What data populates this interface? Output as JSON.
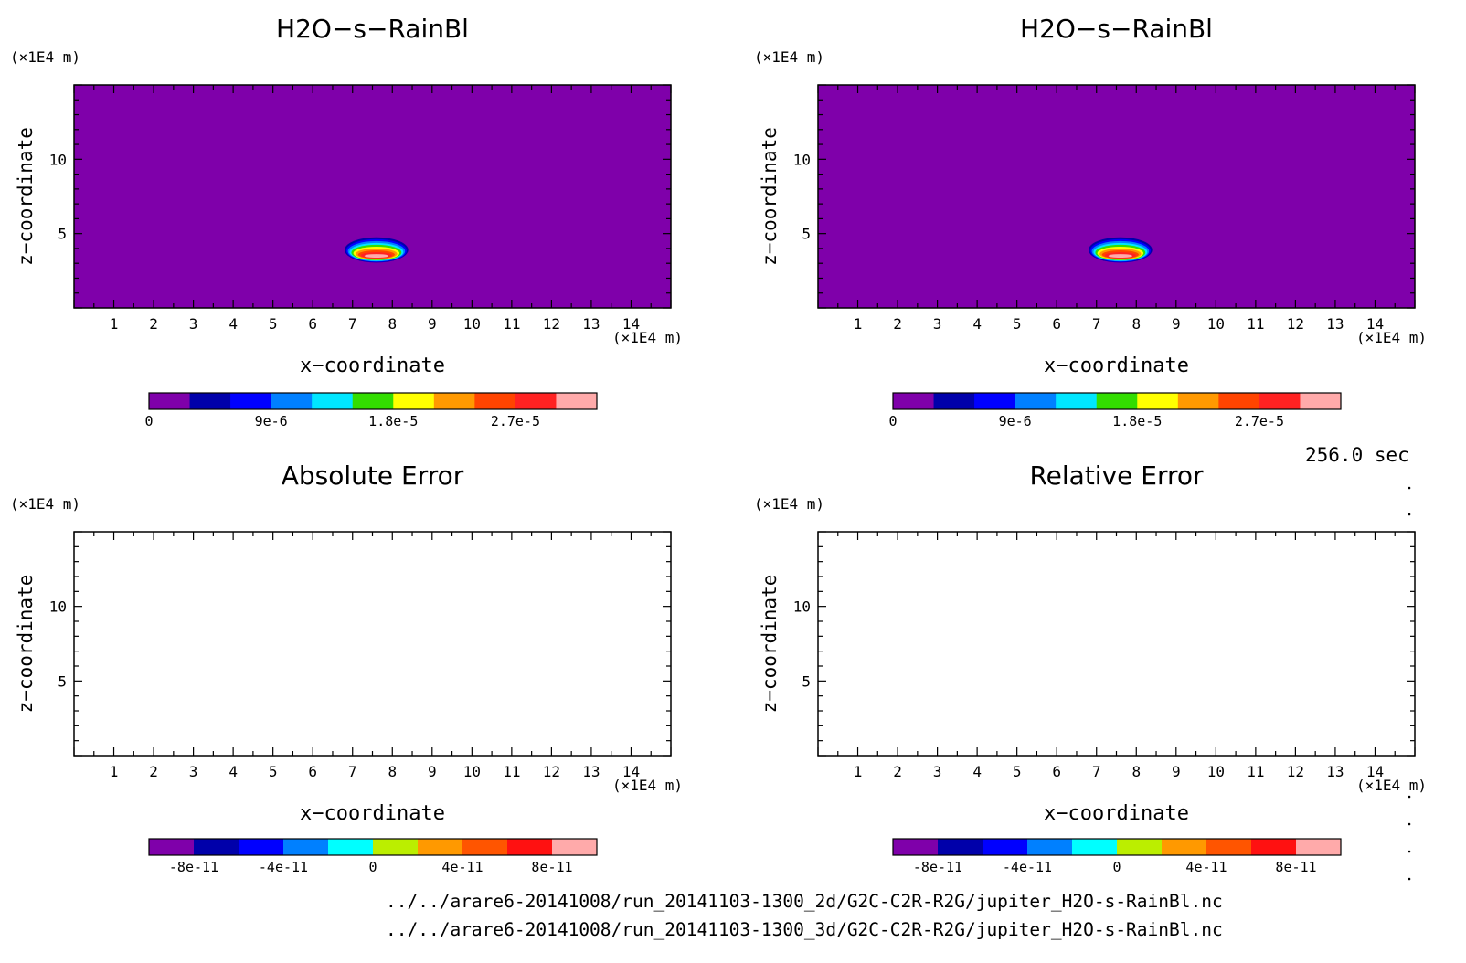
{
  "chart_data": [
    {
      "type": "heatmap",
      "title": "H2O−s−RainBl",
      "xlabel": "x−coordinate",
      "ylabel": "z−coordinate",
      "x_unit": "(×1E4 m)",
      "y_unit": "(×1E4 m)",
      "xlim": [
        0,
        15
      ],
      "ylim": [
        0,
        15
      ],
      "x_ticks": [
        "1",
        "2",
        "3",
        "4",
        "5",
        "6",
        "7",
        "8",
        "9",
        "10",
        "11",
        "12",
        "13",
        "14"
      ],
      "y_ticks": [
        "5",
        "10"
      ],
      "background_value": 0,
      "field_feature": {
        "shape": "blob",
        "center_x": 7.6,
        "center_z": 3.9,
        "width_x": 1.6,
        "height_z": 1.7,
        "peak_value": 3.2e-05
      },
      "colorbar": {
        "colors": [
          "#7f00aa",
          "#0000aa",
          "#0000ff",
          "#0080ff",
          "#00e6ff",
          "#33dd00",
          "#ffff00",
          "#ff9900",
          "#ff4400",
          "#ff2222",
          "#ffaaaa"
        ],
        "tick_labels": [
          "0",
          "9e-6",
          "1.8e-5",
          "2.7e-5"
        ],
        "tick_values": [
          0,
          9e-06,
          1.8e-05,
          2.7e-05
        ],
        "range": [
          0,
          3.3e-05
        ]
      }
    },
    {
      "type": "heatmap",
      "title": "H2O−s−RainBl",
      "xlabel": "x−coordinate",
      "ylabel": "z−coordinate",
      "x_unit": "(×1E4 m)",
      "y_unit": "(×1E4 m)",
      "xlim": [
        0,
        15
      ],
      "ylim": [
        0,
        15
      ],
      "x_ticks": [
        "1",
        "2",
        "3",
        "4",
        "5",
        "6",
        "7",
        "8",
        "9",
        "10",
        "11",
        "12",
        "13",
        "14"
      ],
      "y_ticks": [
        "5",
        "10"
      ],
      "background_value": 0,
      "field_feature": {
        "shape": "blob",
        "center_x": 7.6,
        "center_z": 3.9,
        "width_x": 1.6,
        "height_z": 1.7,
        "peak_value": 3.2e-05
      },
      "colorbar": {
        "colors": [
          "#7f00aa",
          "#0000aa",
          "#0000ff",
          "#0080ff",
          "#00e6ff",
          "#33dd00",
          "#ffff00",
          "#ff9900",
          "#ff4400",
          "#ff2222",
          "#ffaaaa"
        ],
        "tick_labels": [
          "0",
          "9e-6",
          "1.8e-5",
          "2.7e-5"
        ],
        "tick_values": [
          0,
          9e-06,
          1.8e-05,
          2.7e-05
        ],
        "range": [
          0,
          3.3e-05
        ]
      }
    },
    {
      "type": "heatmap",
      "title": "Absolute Error",
      "xlabel": "x−coordinate",
      "ylabel": "z−coordinate",
      "x_unit": "(×1E4 m)",
      "y_unit": "(×1E4 m)",
      "xlim": [
        0,
        15
      ],
      "ylim": [
        0,
        15
      ],
      "x_ticks": [
        "1",
        "2",
        "3",
        "4",
        "5",
        "6",
        "7",
        "8",
        "9",
        "10",
        "11",
        "12",
        "13",
        "14"
      ],
      "y_ticks": [
        "5",
        "10"
      ],
      "background_value": null,
      "colorbar": {
        "colors": [
          "#7f00aa",
          "#0000aa",
          "#0000ff",
          "#0080ff",
          "#00ffff",
          "#bbee00",
          "#ff9900",
          "#ff5500",
          "#ff1111",
          "#ffaaaa"
        ],
        "tick_labels": [
          "-8e-11",
          "-4e-11",
          "0",
          "4e-11",
          "8e-11"
        ],
        "tick_values": [
          -8e-11,
          -4e-11,
          0,
          4e-11,
          8e-11
        ],
        "range": [
          -1e-10,
          1e-10
        ]
      }
    },
    {
      "type": "heatmap",
      "title": "Relative Error",
      "xlabel": "x−coordinate",
      "ylabel": "z−coordinate",
      "x_unit": "(×1E4 m)",
      "y_unit": "(×1E4 m)",
      "xlim": [
        0,
        15
      ],
      "ylim": [
        0,
        15
      ],
      "x_ticks": [
        "1",
        "2",
        "3",
        "4",
        "5",
        "6",
        "7",
        "8",
        "9",
        "10",
        "11",
        "12",
        "13",
        "14"
      ],
      "y_ticks": [
        "5",
        "10"
      ],
      "background_value": null,
      "colorbar": {
        "colors": [
          "#7f00aa",
          "#0000aa",
          "#0000ff",
          "#0080ff",
          "#00ffff",
          "#bbee00",
          "#ff9900",
          "#ff5500",
          "#ff1111",
          "#ffaaaa"
        ],
        "tick_labels": [
          "-8e-11",
          "-4e-11",
          "0",
          "4e-11",
          "8e-11"
        ],
        "tick_values": [
          -8e-11,
          -4e-11,
          0,
          4e-11,
          8e-11
        ],
        "range": [
          -1e-10,
          1e-10
        ]
      }
    }
  ],
  "footer": {
    "time_label": "256.0 sec",
    "file_line_1": "../../arare6-20141008/run_20141103-1300_2d/G2C-C2R-R2G/jupiter_H2O-s-RainBl.nc",
    "file_line_2": "../../arare6-20141008/run_20141103-1300_3d/G2C-C2R-R2G/jupiter_H2O-s-RainBl.nc"
  }
}
